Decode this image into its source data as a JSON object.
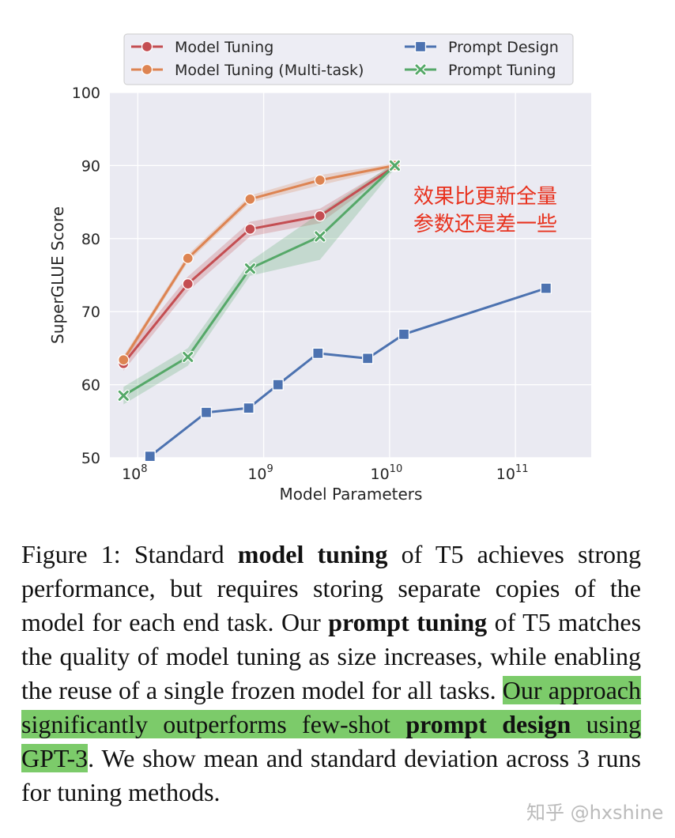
{
  "chart_data": {
    "type": "line",
    "xlabel": "Model Parameters",
    "ylabel": "SuperGLUE Score",
    "x_scale": "log",
    "xlim": [
      60000000,
      400000000000
    ],
    "ylim": [
      50,
      100
    ],
    "yticks": [
      50,
      60,
      70,
      80,
      90,
      100
    ],
    "xticks": [
      {
        "base": "10",
        "exp": "8",
        "value": 100000000
      },
      {
        "base": "10",
        "exp": "9",
        "value": 1000000000
      },
      {
        "base": "10",
        "exp": "10",
        "value": 10000000000
      },
      {
        "base": "10",
        "exp": "11",
        "value": 100000000000
      }
    ],
    "grid": true,
    "legend_position": "top",
    "annotation": {
      "lines": [
        "效果比更新全量",
        "参数还是差一些"
      ],
      "color": "#e8321e"
    },
    "series": [
      {
        "name": "Model Tuning",
        "color": "#c44e52",
        "marker": "circle",
        "x": [
          77000000,
          250000000,
          780000000,
          2800000000,
          11000000000
        ],
        "y": [
          62.9,
          73.8,
          81.3,
          83.1,
          89.9
        ],
        "band": [
          1.0,
          1.0,
          1.0,
          1.0,
          0.3
        ]
      },
      {
        "name": "Model Tuning (Multi-task)",
        "color": "#dd8452",
        "marker": "circle",
        "x": [
          77000000,
          250000000,
          780000000,
          2800000000,
          11000000000
        ],
        "y": [
          63.4,
          77.3,
          85.4,
          88.0,
          90.0
        ],
        "band": [
          0.5,
          0.5,
          0.5,
          0.7,
          0.3
        ]
      },
      {
        "name": "Prompt Design",
        "color": "#4c72b0",
        "marker": "square",
        "x": [
          125000000,
          350000000,
          760000000,
          1300000000,
          2700000000,
          6700000000,
          13000000000,
          175000000000
        ],
        "y": [
          50.2,
          56.2,
          56.8,
          60.0,
          64.3,
          63.6,
          66.9,
          73.2
        ],
        "band": null
      },
      {
        "name": "Prompt Tuning",
        "color": "#55a868",
        "marker": "x",
        "x": [
          77000000,
          250000000,
          780000000,
          2800000000,
          11000000000
        ],
        "y": [
          58.5,
          63.8,
          75.9,
          80.3,
          90.0
        ],
        "band": [
          1.2,
          1.2,
          1.0,
          3.2,
          0.4
        ]
      }
    ]
  },
  "caption": {
    "p1": "Figure 1: Standard ",
    "b1": "model tuning",
    "p2": " of T5 achieves strong performance, but requires storing separate copies of the model for each end task.  Our ",
    "b2": "prompt tuning",
    "p3": " of T5 matches the quality of model tuning as size increases, while enabling the reuse of a single frozen model for all tasks. ",
    "h1": "Our approach significantly outperforms few-shot ",
    "hb": "prompt design",
    "h2": " using GPT-3",
    "p4": ".  We show mean and standard deviation across 3 runs for tuning methods."
  },
  "watermark": "知乎 @hxshine"
}
